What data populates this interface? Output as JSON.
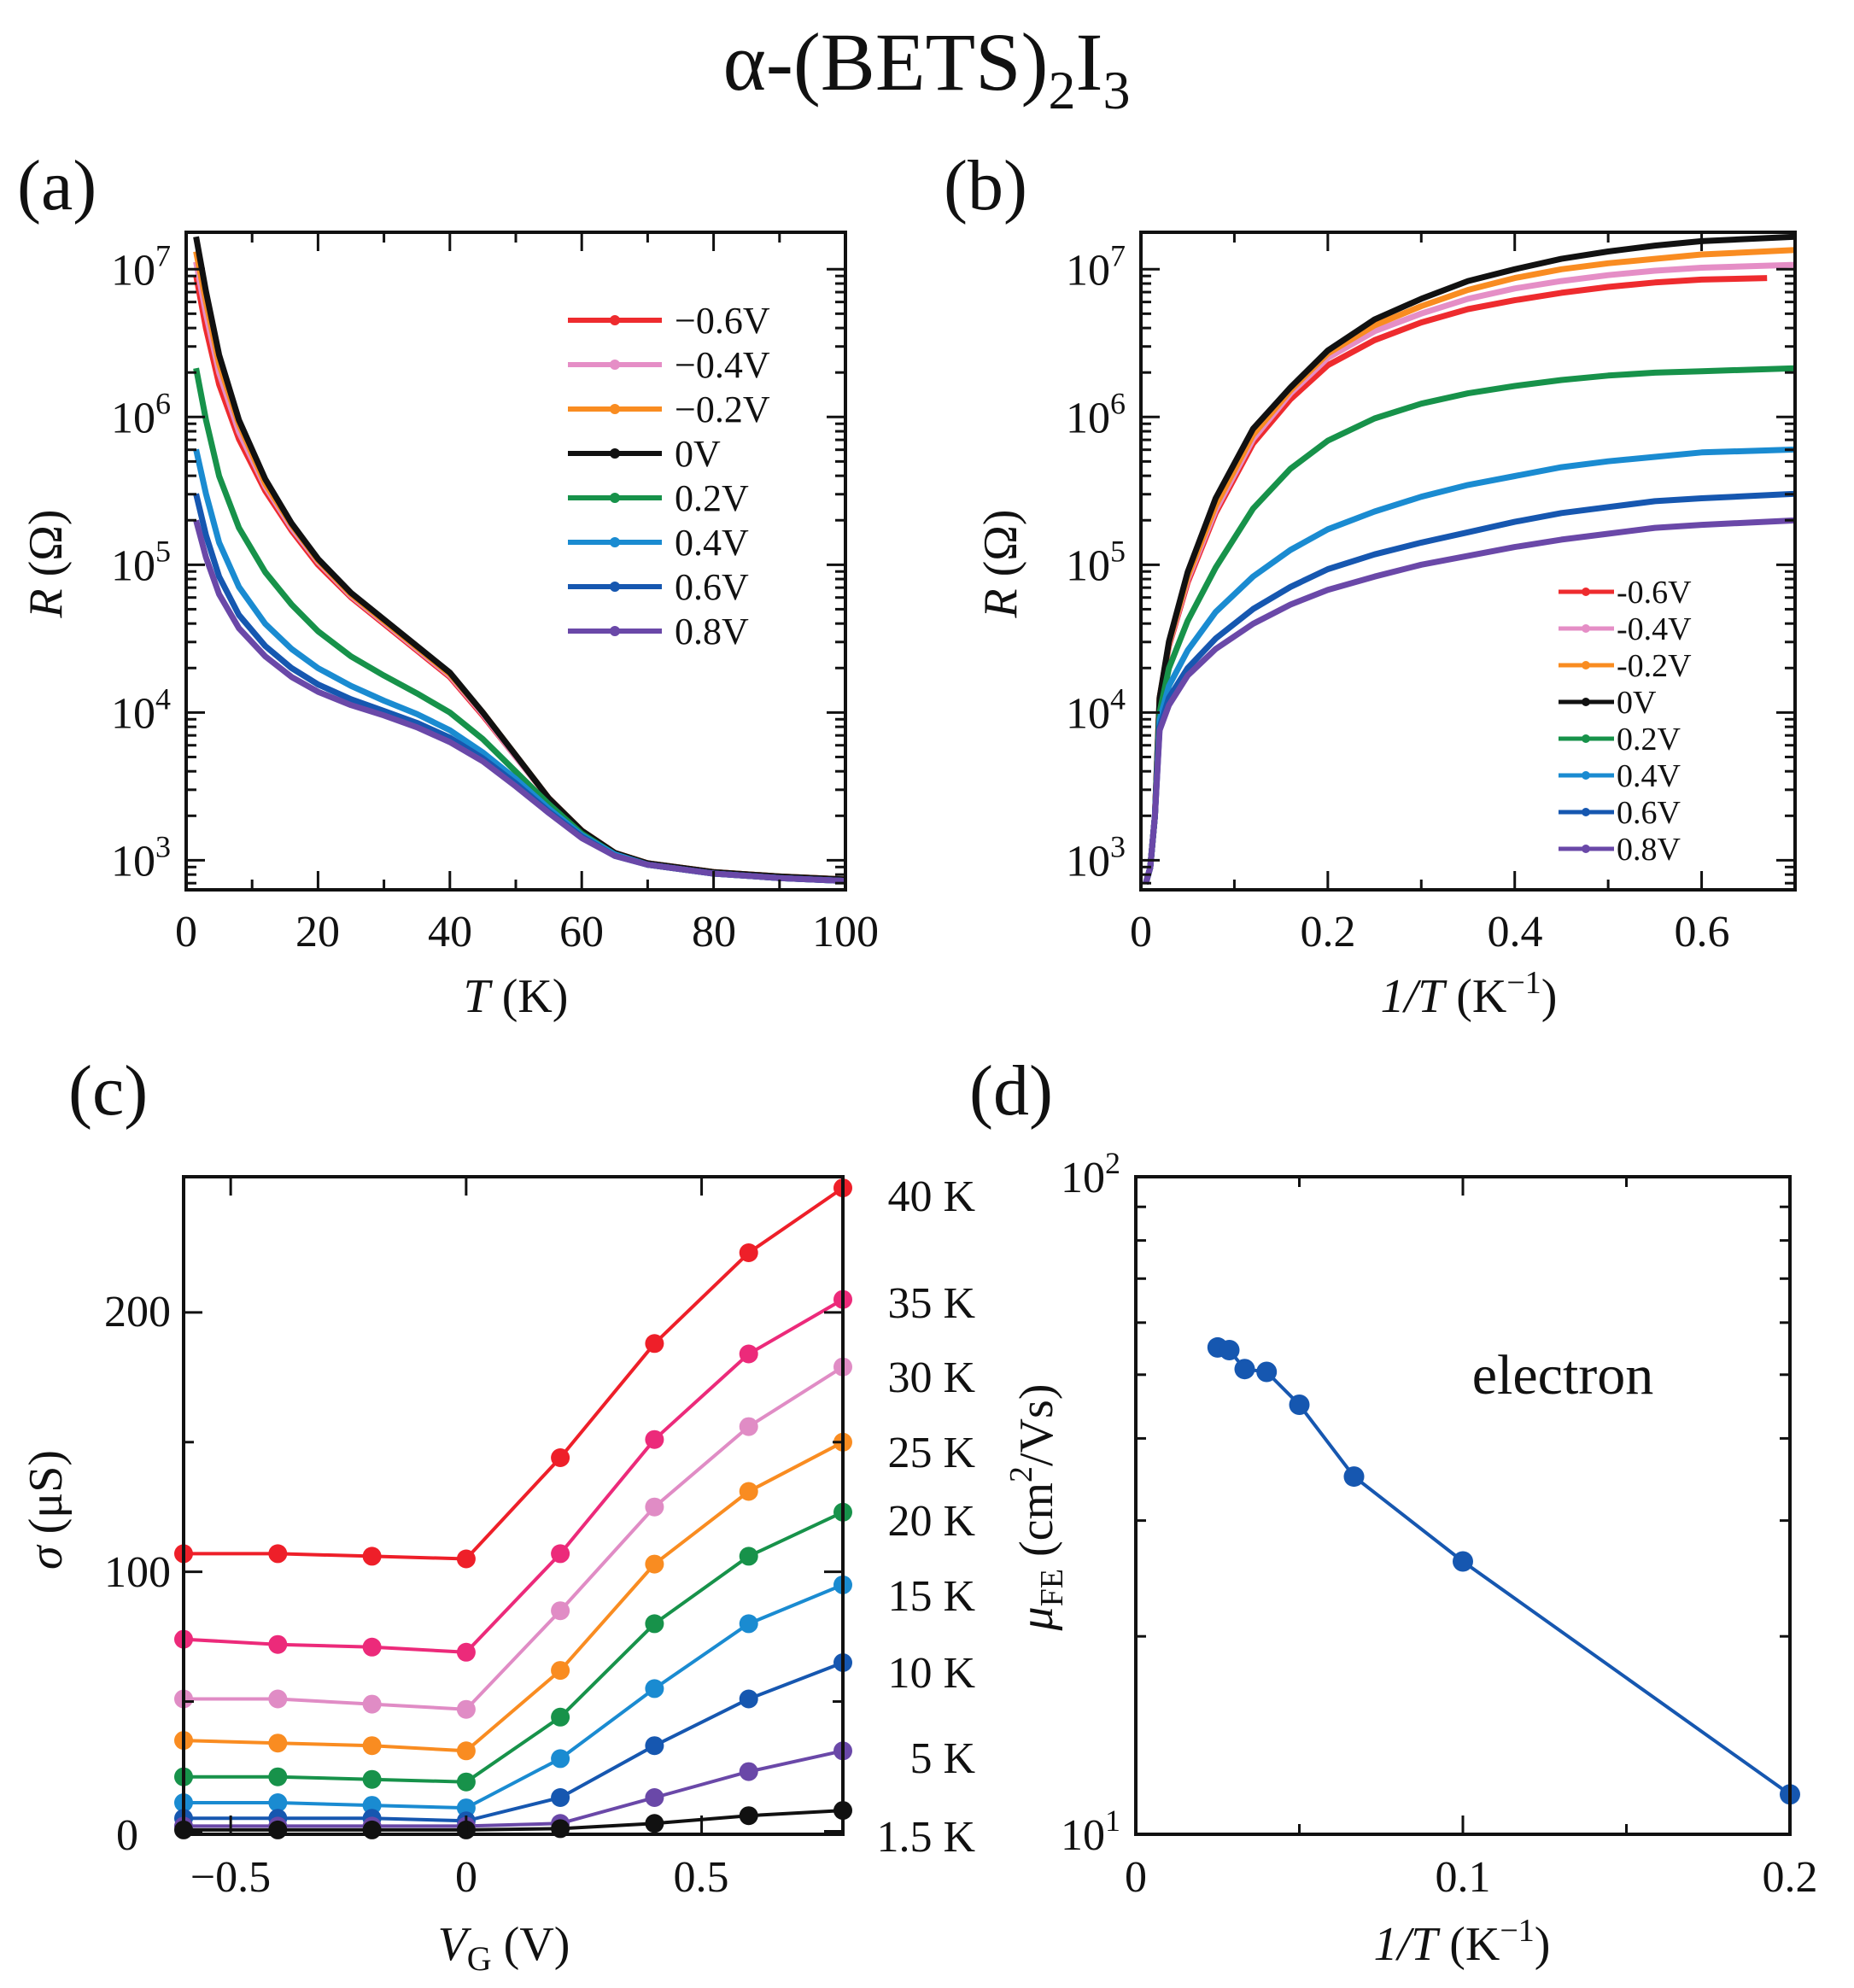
{
  "figure": {
    "title": "α-(BETS)",
    "title_sub1": "2",
    "title_mid": "I",
    "title_sub2": "3"
  },
  "colors": {
    "-0.6V": "#ee2b2e",
    "-0.4V": "#e58ec6",
    "-0.2V": "#f98c21",
    "0V": "#111111",
    "0.2V": "#17924a",
    "0.4V": "#1a8bd1",
    "0.6V": "#1657b0",
    "0.8V": "#6a48a8",
    "40 K": "#ee1f29",
    "35 K": "#ec2a7a",
    "30 K": "#e08cc5",
    "25 K": "#f98c21",
    "20 K": "#17924a",
    "15 K": "#1a8bd1",
    "10 K": "#1657b0",
    "5 K": "#6a48a8",
    "1.5 K": "#111111",
    "electron": "#1657b0"
  },
  "chart_data": [
    {
      "panel": "(a)",
      "type": "line",
      "xlabel_italic": "T",
      "xlabel_rest": " (K)",
      "ylabel_italic": "R",
      "ylabel_rest": " (Ω)",
      "xlim": [
        0,
        100
      ],
      "ylim_log10": [
        2.8,
        7.25
      ],
      "yscale": "log",
      "xticks": [
        "0",
        "20",
        "40",
        "60",
        "80",
        "100"
      ],
      "yticks": [
        "10^3",
        "10^4",
        "10^5",
        "10^6",
        "10^7"
      ],
      "legend": [
        "−0.6V",
        "−0.4V",
        "−0.2V",
        "0V",
        "0.2V",
        "0.4V",
        "0.6V",
        "0.8V"
      ],
      "legend_position": "top-right",
      "series": [
        {
          "name": "-0.6V",
          "x": [
            1.5,
            3,
            5,
            8,
            12,
            16,
            20,
            25,
            30,
            35,
            40,
            45,
            50,
            55,
            60,
            65,
            70,
            80,
            90,
            100
          ],
          "log10R": [
            6.96,
            6.6,
            6.22,
            5.85,
            5.5,
            5.23,
            5.0,
            4.78,
            4.6,
            4.42,
            4.24,
            3.98,
            3.7,
            3.42,
            3.2,
            3.05,
            2.98,
            2.92,
            2.89,
            2.87
          ]
        },
        {
          "name": "-0.4V",
          "x": [
            1.5,
            3,
            5,
            8,
            12,
            16,
            20,
            25,
            30,
            35,
            40,
            45,
            50,
            55,
            60,
            65,
            70,
            80,
            90,
            100
          ],
          "log10R": [
            7.05,
            6.7,
            6.3,
            5.9,
            5.53,
            5.25,
            5.02,
            4.79,
            4.61,
            4.43,
            4.25,
            3.99,
            3.7,
            3.42,
            3.2,
            3.05,
            2.98,
            2.92,
            2.89,
            2.87
          ]
        },
        {
          "name": "-0.2V",
          "x": [
            1.5,
            3,
            5,
            8,
            12,
            16,
            20,
            25,
            30,
            35,
            40,
            45,
            50,
            55,
            60,
            65,
            70,
            80,
            90,
            100
          ],
          "log10R": [
            7.12,
            6.78,
            6.36,
            5.95,
            5.55,
            5.27,
            5.03,
            4.8,
            4.62,
            4.44,
            4.26,
            4.0,
            3.71,
            3.42,
            3.2,
            3.05,
            2.98,
            2.92,
            2.89,
            2.87
          ]
        },
        {
          "name": "0V",
          "x": [
            1.5,
            3,
            5,
            8,
            12,
            16,
            20,
            25,
            30,
            35,
            40,
            45,
            50,
            55,
            60,
            65,
            70,
            80,
            90,
            100
          ],
          "log10R": [
            7.22,
            6.85,
            6.42,
            5.98,
            5.58,
            5.28,
            5.04,
            4.81,
            4.63,
            4.45,
            4.27,
            4.0,
            3.71,
            3.42,
            3.2,
            3.05,
            2.98,
            2.92,
            2.89,
            2.87
          ]
        },
        {
          "name": "0.2V",
          "x": [
            1.5,
            3,
            5,
            8,
            12,
            16,
            20,
            25,
            30,
            35,
            40,
            45,
            50,
            55,
            60,
            65,
            70,
            80,
            90,
            100
          ],
          "log10R": [
            6.33,
            5.98,
            5.6,
            5.25,
            4.95,
            4.73,
            4.55,
            4.38,
            4.25,
            4.13,
            4.0,
            3.82,
            3.6,
            3.38,
            3.18,
            3.04,
            2.97,
            2.91,
            2.88,
            2.86
          ]
        },
        {
          "name": "0.4V",
          "x": [
            1.5,
            3,
            5,
            8,
            12,
            16,
            20,
            25,
            30,
            35,
            40,
            45,
            50,
            55,
            60,
            65,
            70,
            80,
            90,
            100
          ],
          "log10R": [
            5.78,
            5.48,
            5.15,
            4.85,
            4.6,
            4.43,
            4.3,
            4.18,
            4.08,
            3.99,
            3.88,
            3.73,
            3.55,
            3.35,
            3.17,
            3.04,
            2.97,
            2.91,
            2.88,
            2.86
          ]
        },
        {
          "name": "0.6V",
          "x": [
            1.5,
            3,
            5,
            8,
            12,
            16,
            20,
            25,
            30,
            35,
            40,
            45,
            50,
            55,
            60,
            65,
            70,
            80,
            90,
            100
          ],
          "log10R": [
            5.48,
            5.2,
            4.92,
            4.66,
            4.45,
            4.3,
            4.19,
            4.09,
            4.01,
            3.93,
            3.83,
            3.69,
            3.52,
            3.33,
            3.16,
            3.03,
            2.97,
            2.91,
            2.88,
            2.86
          ]
        },
        {
          "name": "0.8V",
          "x": [
            1.5,
            3,
            5,
            8,
            12,
            16,
            20,
            25,
            30,
            35,
            40,
            45,
            50,
            55,
            60,
            65,
            70,
            80,
            90,
            100
          ],
          "log10R": [
            5.3,
            5.05,
            4.8,
            4.57,
            4.38,
            4.24,
            4.14,
            4.05,
            3.98,
            3.9,
            3.8,
            3.67,
            3.5,
            3.32,
            3.15,
            3.03,
            2.97,
            2.91,
            2.88,
            2.86
          ]
        }
      ]
    },
    {
      "panel": "(b)",
      "type": "line",
      "xlabel_italic": "1/T",
      "xlabel_rest": " (K",
      "xlabel_sup": "−1",
      "xlabel_close": ")",
      "ylabel_italic": "R",
      "ylabel_rest": " (Ω)",
      "xlim": [
        0,
        0.7
      ],
      "ylim_log10": [
        2.8,
        7.25
      ],
      "yscale": "log",
      "xticks": [
        "0",
        "0.2",
        "0.4",
        "0.6"
      ],
      "yticks": [
        "10^3",
        "10^4",
        "10^5",
        "10^6",
        "10^7"
      ],
      "legend": [
        "-0.6V",
        "-0.4V",
        "-0.2V",
        "0V",
        "0.2V",
        "0.4V",
        "0.6V",
        "0.8V"
      ],
      "legend_position": "bottom-right",
      "series": [
        {
          "name": "-0.6V",
          "x": [
            0.005,
            0.01,
            0.015,
            0.02,
            0.03,
            0.05,
            0.08,
            0.12,
            0.16,
            0.2,
            0.25,
            0.3,
            0.35,
            0.4,
            0.45,
            0.5,
            0.55,
            0.6,
            0.67
          ],
          "log10R": [
            2.84,
            2.95,
            3.3,
            4.1,
            4.45,
            4.88,
            5.35,
            5.82,
            6.12,
            6.35,
            6.52,
            6.64,
            6.73,
            6.79,
            6.84,
            6.88,
            6.91,
            6.93,
            6.94
          ]
        },
        {
          "name": "-0.4V",
          "x": [
            0.005,
            0.01,
            0.015,
            0.02,
            0.03,
            0.05,
            0.08,
            0.12,
            0.16,
            0.2,
            0.25,
            0.3,
            0.35,
            0.4,
            0.45,
            0.5,
            0.55,
            0.6,
            0.7
          ],
          "log10R": [
            2.84,
            2.95,
            3.3,
            4.1,
            4.46,
            4.9,
            5.37,
            5.85,
            6.16,
            6.4,
            6.58,
            6.7,
            6.8,
            6.87,
            6.92,
            6.96,
            6.99,
            7.01,
            7.03
          ]
        },
        {
          "name": "-0.2V",
          "x": [
            0.005,
            0.01,
            0.015,
            0.02,
            0.03,
            0.05,
            0.08,
            0.12,
            0.16,
            0.2,
            0.25,
            0.3,
            0.35,
            0.4,
            0.45,
            0.5,
            0.55,
            0.6,
            0.7
          ],
          "log10R": [
            2.84,
            2.95,
            3.3,
            4.1,
            4.47,
            4.92,
            5.4,
            5.88,
            6.18,
            6.43,
            6.62,
            6.75,
            6.86,
            6.94,
            7.0,
            7.04,
            7.07,
            7.1,
            7.13
          ]
        },
        {
          "name": "0V",
          "x": [
            0.005,
            0.01,
            0.015,
            0.02,
            0.03,
            0.05,
            0.08,
            0.12,
            0.16,
            0.2,
            0.25,
            0.3,
            0.35,
            0.4,
            0.45,
            0.5,
            0.55,
            0.6,
            0.7
          ],
          "log10R": [
            2.84,
            2.95,
            3.3,
            4.1,
            4.48,
            4.95,
            5.45,
            5.92,
            6.2,
            6.45,
            6.66,
            6.8,
            6.92,
            7.0,
            7.07,
            7.12,
            7.16,
            7.19,
            7.22
          ]
        },
        {
          "name": "0.2V",
          "x": [
            0.005,
            0.01,
            0.015,
            0.02,
            0.03,
            0.05,
            0.08,
            0.12,
            0.16,
            0.2,
            0.25,
            0.3,
            0.35,
            0.4,
            0.45,
            0.5,
            0.55,
            0.6,
            0.7
          ],
          "log10R": [
            2.84,
            2.95,
            3.3,
            4.0,
            4.3,
            4.62,
            4.98,
            5.38,
            5.65,
            5.84,
            5.99,
            6.09,
            6.16,
            6.21,
            6.25,
            6.28,
            6.3,
            6.31,
            6.33
          ]
        },
        {
          "name": "0.4V",
          "x": [
            0.005,
            0.01,
            0.015,
            0.02,
            0.03,
            0.05,
            0.08,
            0.12,
            0.16,
            0.2,
            0.25,
            0.3,
            0.35,
            0.4,
            0.45,
            0.5,
            0.55,
            0.6,
            0.7
          ],
          "log10R": [
            2.84,
            2.95,
            3.3,
            3.95,
            4.18,
            4.42,
            4.68,
            4.92,
            5.1,
            5.24,
            5.36,
            5.46,
            5.54,
            5.6,
            5.66,
            5.7,
            5.73,
            5.76,
            5.78
          ]
        },
        {
          "name": "0.6V",
          "x": [
            0.005,
            0.01,
            0.015,
            0.02,
            0.03,
            0.05,
            0.08,
            0.12,
            0.16,
            0.2,
            0.25,
            0.3,
            0.35,
            0.4,
            0.45,
            0.5,
            0.55,
            0.6,
            0.7
          ],
          "log10R": [
            2.84,
            2.95,
            3.3,
            3.9,
            4.1,
            4.3,
            4.5,
            4.7,
            4.85,
            4.97,
            5.07,
            5.15,
            5.22,
            5.29,
            5.35,
            5.39,
            5.43,
            5.45,
            5.48
          ]
        },
        {
          "name": "0.8V",
          "x": [
            0.005,
            0.01,
            0.015,
            0.02,
            0.03,
            0.05,
            0.08,
            0.12,
            0.16,
            0.2,
            0.25,
            0.3,
            0.35,
            0.4,
            0.45,
            0.5,
            0.55,
            0.6,
            0.7
          ],
          "log10R": [
            2.84,
            2.95,
            3.3,
            3.88,
            4.05,
            4.25,
            4.43,
            4.6,
            4.73,
            4.83,
            4.92,
            5.0,
            5.06,
            5.12,
            5.17,
            5.21,
            5.25,
            5.27,
            5.3
          ]
        }
      ]
    },
    {
      "panel": "(c)",
      "type": "line",
      "xlabel_italic": "V",
      "xlabel_sub": "G",
      "xlabel_rest": " (V)",
      "ylabel_italic": "σ",
      "ylabel_rest": " (μS)",
      "xlim": [
        -0.6,
        0.8
      ],
      "ylim": [
        0,
        250
      ],
      "xticks": [
        "−0.5",
        "0",
        "0.5"
      ],
      "yticks": [
        "0",
        "100",
        "200"
      ],
      "x": [
        -0.6,
        -0.4,
        -0.2,
        0.0,
        0.2,
        0.4,
        0.6,
        0.8
      ],
      "series": [
        {
          "name": "40 K",
          "values": [
            107,
            107,
            106,
            105,
            144,
            188,
            223,
            248
          ]
        },
        {
          "name": "35 K",
          "values": [
            74,
            72,
            71,
            69,
            107,
            151,
            184,
            205
          ]
        },
        {
          "name": "30 K",
          "values": [
            51,
            51,
            49,
            47,
            85,
            125,
            156,
            179
          ]
        },
        {
          "name": "25 K",
          "values": [
            35,
            34,
            33,
            31,
            62,
            103,
            131,
            150
          ]
        },
        {
          "name": "20 K",
          "values": [
            21,
            21,
            20,
            19,
            44,
            80,
            106,
            123
          ]
        },
        {
          "name": "15 K",
          "values": [
            11,
            11,
            10,
            9,
            28,
            55,
            80,
            95
          ]
        },
        {
          "name": "10 K",
          "values": [
            5,
            5,
            5,
            4,
            13,
            33,
            51,
            65
          ]
        },
        {
          "name": "5 K",
          "values": [
            2,
            2,
            2,
            2,
            3,
            13,
            23,
            31
          ]
        },
        {
          "name": "1.5 K",
          "values": [
            0.5,
            0.5,
            0.5,
            0.5,
            1,
            3,
            6,
            8
          ]
        }
      ]
    },
    {
      "panel": "(d)",
      "type": "line",
      "xlabel_italic": "1/T",
      "xlabel_rest": " (K",
      "xlabel_sup": "−1",
      "xlabel_close": ")",
      "ylabel_italic": "μ",
      "ylabel_sub": "FE",
      "ylabel_rest": " (cm",
      "ylabel_sup": "2",
      "ylabel_close": "/Vs)",
      "xlim": [
        0,
        0.2
      ],
      "ylim_log10": [
        1,
        2
      ],
      "yscale": "log",
      "xticks": [
        "0",
        "0.1",
        "0.2"
      ],
      "yticks": [
        "10^1",
        "10^2"
      ],
      "annotation": "electron",
      "series": [
        {
          "name": "electron",
          "x": [
            0.025,
            0.0286,
            0.0333,
            0.04,
            0.05,
            0.0667,
            0.1,
            0.2
          ],
          "values": [
            55,
            54.5,
            51,
            50.5,
            45,
            35,
            26,
            11.5
          ]
        }
      ]
    }
  ]
}
